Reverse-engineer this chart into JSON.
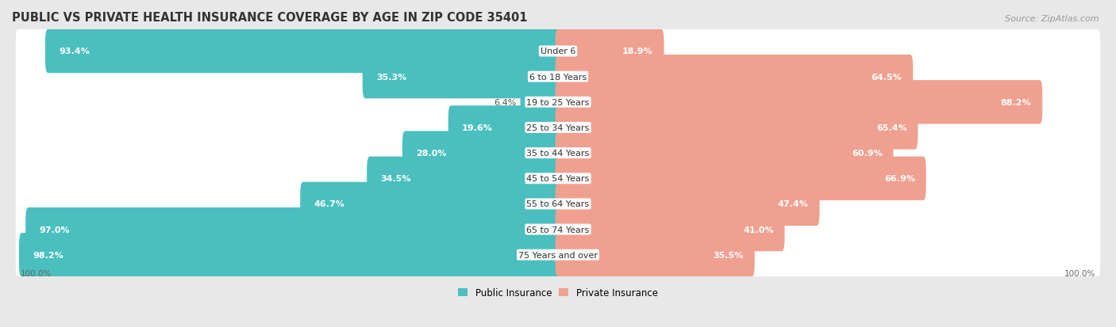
{
  "title": "PUBLIC VS PRIVATE HEALTH INSURANCE COVERAGE BY AGE IN ZIP CODE 35401",
  "source": "Source: ZipAtlas.com",
  "categories": [
    "Under 6",
    "6 to 18 Years",
    "19 to 25 Years",
    "25 to 34 Years",
    "35 to 44 Years",
    "45 to 54 Years",
    "55 to 64 Years",
    "65 to 74 Years",
    "75 Years and over"
  ],
  "public_values": [
    93.4,
    35.3,
    6.4,
    19.6,
    28.0,
    34.5,
    46.7,
    97.0,
    98.2
  ],
  "private_values": [
    18.9,
    64.5,
    88.2,
    65.4,
    60.9,
    66.9,
    47.4,
    41.0,
    35.5
  ],
  "public_color": "#4BBFBF",
  "private_color": "#F0A090",
  "background_color": "#e8e8e8",
  "bar_bg_color": "#ffffff",
  "label_color_light": "#ffffff",
  "label_color_dark": "#555555",
  "max_value": 100.0,
  "title_fontsize": 10.5,
  "source_fontsize": 8,
  "label_fontsize": 8,
  "category_fontsize": 8,
  "legend_fontsize": 8.5,
  "footer_fontsize": 7.5
}
